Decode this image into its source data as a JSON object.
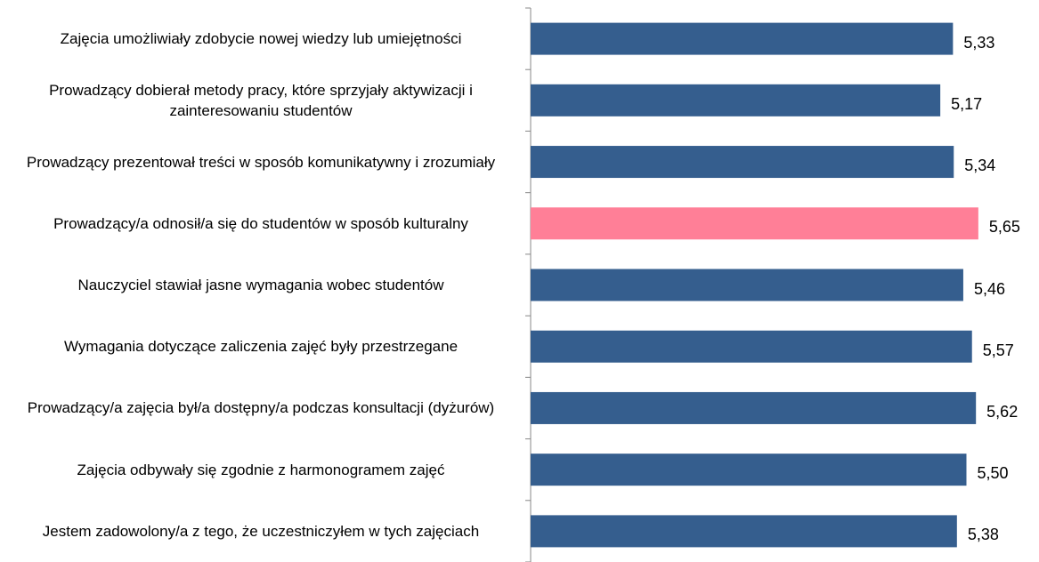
{
  "chart_data": {
    "type": "hbar",
    "categories": [
      "Zajęcia umożliwiały zdobycie nowej wiedzy lub umiejętności",
      "Prowadzący dobierał metody pracy, które sprzyjały aktywizacji i zainteresowaniu studentów",
      "Prowadzący prezentował treści w sposób komunikatywny i zrozumiały",
      "Prowadzący/a odnosił/a się do studentów w sposób kulturalny",
      "Nauczyciel stawiał jasne wymagania wobec studentów",
      "Wymagania dotyczące zaliczenia zajęć były przestrzegane",
      "Prowadzący/a zajęcia był/a dostępny/a podczas konsultacji (dyżurów)",
      "Zajęcia odbywały się zgodnie z harmonogramem zajęć",
      "Jestem zadowolony/a z tego, że uczestniczyłem w tych zajęciach"
    ],
    "values": [
      5.33,
      5.17,
      5.34,
      5.65,
      5.46,
      5.57,
      5.62,
      5.5,
      5.38
    ],
    "value_labels": [
      "5,33",
      "5,17",
      "5,34",
      "5,65",
      "5,46",
      "5,57",
      "5,62",
      "5,50",
      "5,38"
    ],
    "colors": [
      "#355e8e",
      "#355e8e",
      "#355e8e",
      "#ff7f97",
      "#355e8e",
      "#355e8e",
      "#355e8e",
      "#355e8e",
      "#355e8e"
    ],
    "xlim": [
      0,
      6
    ]
  }
}
